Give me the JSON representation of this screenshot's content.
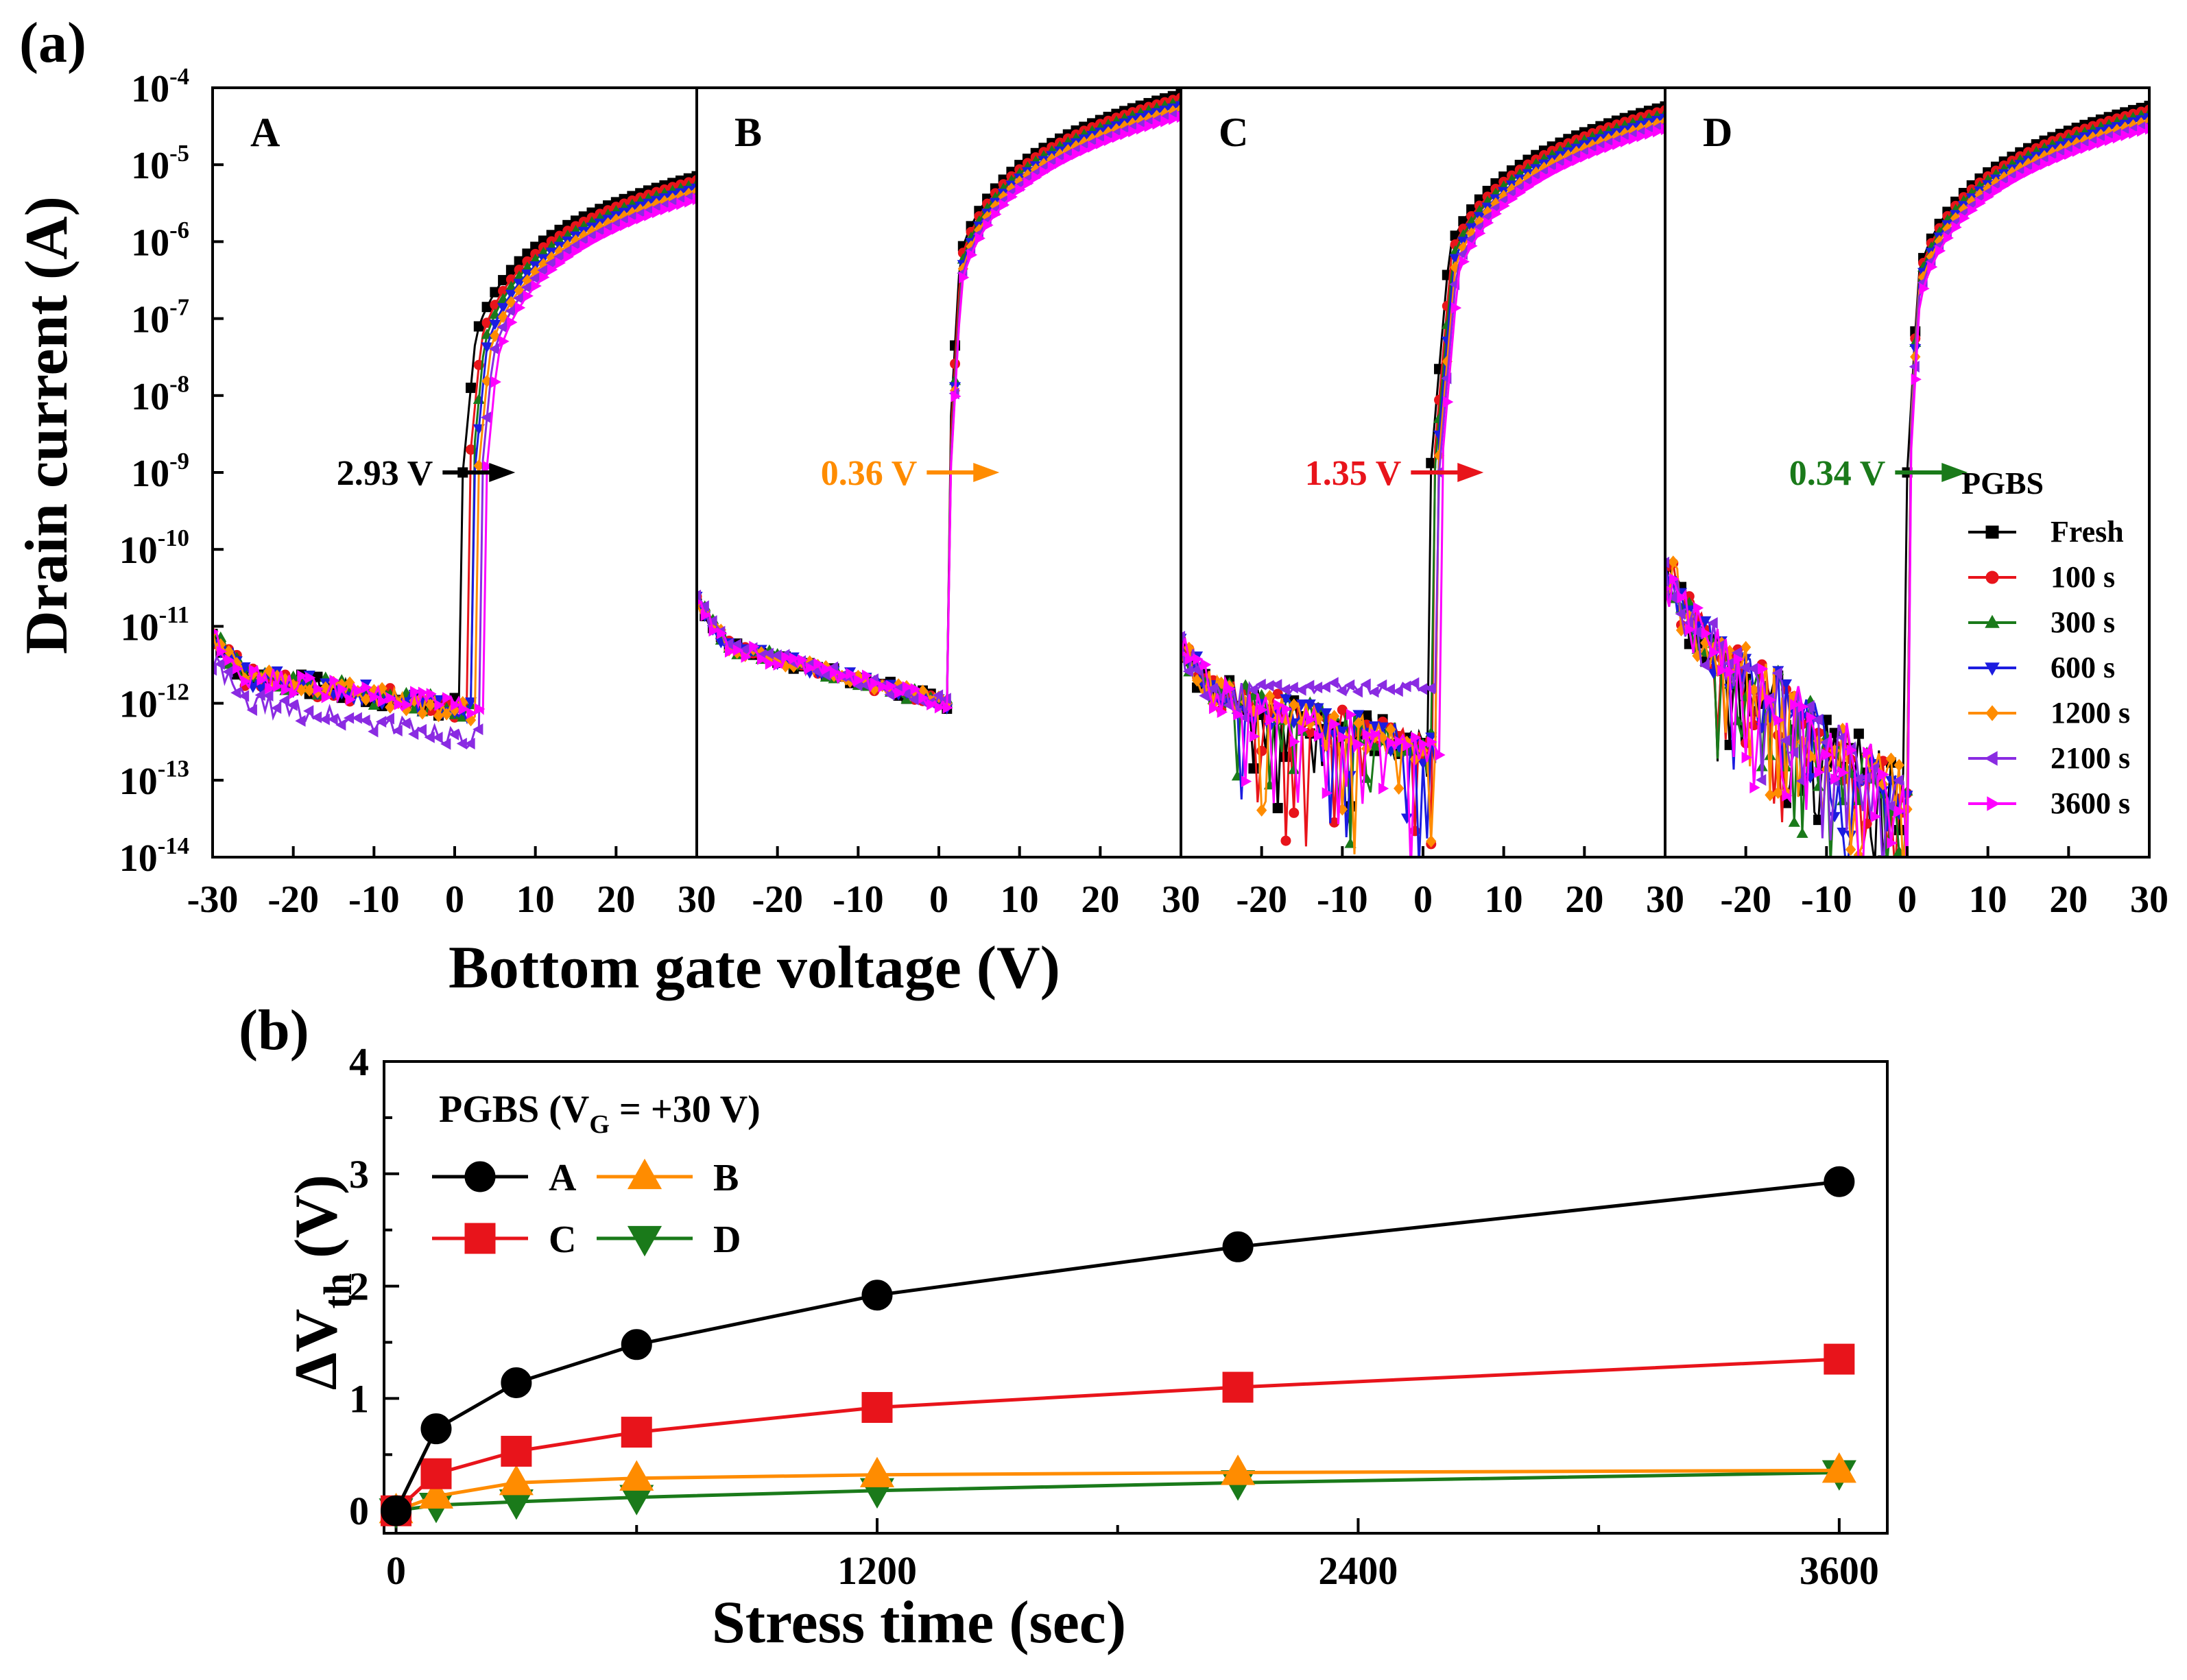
{
  "colors": {
    "Fresh": "#000000",
    "100 s": "#e8141b",
    "300 s": "#1a7a1a",
    "600 s": "#1c1ce0",
    "1200 s": "#ff8c00",
    "2100 s": "#8a2be2",
    "3600 s": "#ff00ff",
    "A": "#000000",
    "B": "#ff8c00",
    "C": "#e8141b",
    "D": "#1a7a1a"
  },
  "chart_data": [
    {
      "panel_label": "(a)",
      "type": "line",
      "ylabel": "Drain current (A)",
      "xlabel": "Bottom gate voltage (V)",
      "xlim": [
        -30,
        30
      ],
      "ylim_exp": [
        -14,
        -4
      ],
      "y_scale": "log",
      "x_ticks": [
        "-30",
        "-20",
        "-10",
        "0",
        "10",
        "20",
        "30"
      ],
      "y_ticks": [
        {
          "base": "10",
          "exp": "-4"
        },
        {
          "base": "10",
          "exp": "-5"
        },
        {
          "base": "10",
          "exp": "-6"
        },
        {
          "base": "10",
          "exp": "-7"
        },
        {
          "base": "10",
          "exp": "-8"
        },
        {
          "base": "10",
          "exp": "-9"
        },
        {
          "base": "10",
          "exp": "-10"
        },
        {
          "base": "10",
          "exp": "-11"
        },
        {
          "base": "10",
          "exp": "-12"
        },
        {
          "base": "10",
          "exp": "-13"
        },
        {
          "base": "10",
          "exp": "-14"
        }
      ],
      "legend_title": "PGBS",
      "legend": [
        {
          "label": "Fresh",
          "marker": "square"
        },
        {
          "label": "100 s",
          "marker": "circle"
        },
        {
          "label": "300 s",
          "marker": "triangle-up"
        },
        {
          "label": "600 s",
          "marker": "triangle-down"
        },
        {
          "label": "1200 s",
          "marker": "diamond"
        },
        {
          "label": "2100 s",
          "marker": "triangle-left"
        },
        {
          "label": "3600 s",
          "marker": "triangle-right"
        }
      ],
      "times": [
        "Fresh",
        "100 s",
        "300 s",
        "600 s",
        "1200 s",
        "2100 s",
        "3600 s"
      ],
      "panels": [
        {
          "label": "A",
          "annotation": "2.93 V",
          "annotation_color": "#000000",
          "vth": [
            1.0,
            1.73,
            2.14,
            2.48,
            2.92,
            3.35,
            3.93
          ],
          "ion_log": -5.15,
          "ss": 0.2,
          "vfit": 30,
          "off_log": -11.9,
          "off_slope": 0.018,
          "off_drop": 0.3
        },
        {
          "label": "B",
          "annotation": "0.36 V",
          "annotation_color": "#ff8c00",
          "vth": [
            1.1,
            1.23,
            1.35,
            1.39,
            1.42,
            1.44,
            1.46
          ],
          "ion_log": -4.2,
          "ss": 0.12,
          "vfit": 26,
          "off_log": -11.7,
          "off_slope": 0.03,
          "off_drop": 0.0
        },
        {
          "label": "C",
          "annotation": "1.35 V",
          "annotation_color": "#e8141b",
          "vth": [
            0.9,
            1.23,
            1.43,
            1.6,
            1.82,
            2.0,
            2.25
          ],
          "ion_log": -4.3,
          "ss": 0.18,
          "vfit": 28,
          "off_log": -12.3,
          "off_slope": 0.03,
          "off_drop": 0.8
        },
        {
          "label": "D",
          "annotation": "0.34 V",
          "annotation_color": "#1a7a1a",
          "vth": [
            0.0,
            0.05,
            0.08,
            0.12,
            0.18,
            0.25,
            0.34
          ],
          "ion_log": -4.35,
          "ss": 0.12,
          "vfit": 26,
          "off_log": -12.4,
          "off_slope": 0.09,
          "off_drop": 1.5
        }
      ]
    },
    {
      "panel_label": "(b)",
      "type": "line",
      "xlabel": "Stress time (sec)",
      "ylabel_main": "ΔV",
      "ylabel_sub": "th",
      "ylabel_unit": " (V)",
      "xlim": [
        -30,
        3720
      ],
      "ylim": [
        -0.2,
        4
      ],
      "x_ticks": [
        0,
        1200,
        2400,
        3600
      ],
      "y_ticks": [
        0,
        1,
        2,
        3,
        4
      ],
      "legend_title": {
        "text1": "PGBS (V",
        "sub": "G",
        "text2": " = +30 V)"
      },
      "x": [
        0,
        100,
        300,
        600,
        1200,
        2100,
        3600
      ],
      "series": [
        {
          "name": "A",
          "marker": "circle",
          "values": [
            0,
            0.73,
            1.14,
            1.48,
            1.92,
            2.35,
            2.93
          ]
        },
        {
          "name": "B",
          "marker": "triangle-up",
          "values": [
            0,
            0.13,
            0.25,
            0.29,
            0.32,
            0.34,
            0.36
          ]
        },
        {
          "name": "C",
          "marker": "square",
          "values": [
            0,
            0.33,
            0.53,
            0.7,
            0.92,
            1.1,
            1.35
          ]
        },
        {
          "name": "D",
          "marker": "triangle-down",
          "values": [
            0,
            0.05,
            0.08,
            0.12,
            0.18,
            0.25,
            0.34
          ]
        }
      ]
    }
  ]
}
